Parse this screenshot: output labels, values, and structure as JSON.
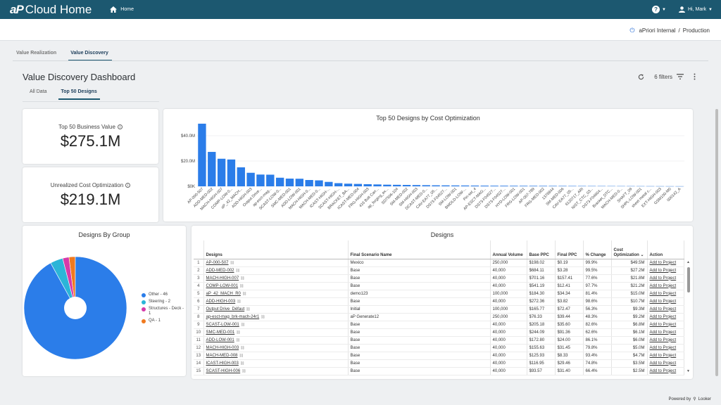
{
  "topbar": {
    "logo_ap": "aP",
    "logo_text": "Cloud Home",
    "home_label": "Home",
    "help_icon": "?",
    "user_label": "Hi, Mark"
  },
  "subheader": {
    "org": "aPriori Internal",
    "separator": "/",
    "env": "Production"
  },
  "nav": {
    "tabs": [
      "Value Realization",
      "Value Discovery"
    ],
    "active": "Value Discovery"
  },
  "dashboard": {
    "title": "Value Discovery Dashboard",
    "subtabs": [
      "All Data",
      "Top 50 Designs"
    ],
    "filters_label": "6 filters"
  },
  "kpis": [
    {
      "label": "Top 50 Business Value",
      "value": "$275.1M"
    },
    {
      "label": "Unrealized Cost Optimization",
      "value": "$219.1M"
    }
  ],
  "colors": {
    "header": "#1c5870",
    "bar": "#2b7de9",
    "other": "#2b7de9",
    "steering": "#2bb5d8",
    "structures": "#d63aa9",
    "qa": "#f07a1f"
  },
  "bar_chart_title": "Top 50 Designs by Cost Optimization",
  "pie_chart_title": "Designs By Group",
  "table_title": "Designs",
  "chart_data": [
    {
      "type": "bar",
      "title": "Top 50 Designs by Cost Optimization",
      "ylim": [
        0,
        50
      ],
      "yticks": [
        "$0K",
        "$20.0M",
        "$40.0M"
      ],
      "ytick_values": [
        0,
        20,
        40
      ],
      "categories": [
        "AP-000-507",
        "ADD-MED-002",
        "MACH-HIGH-007",
        "COMP-LOW-0...",
        "aP_42_MACH...",
        "ADD-HIGH-003",
        "Output Drive...",
        "ap-esct-mag...",
        "SCAST-LOW-0...",
        "SMC-MED-001",
        "ADD-LOW-001",
        "MACH-HIGH-0...",
        "MACH-MED-0...",
        "ICAST-HIGH-...",
        "SCAST-HIGH-...",
        "BRACKET_BA...",
        "ICAST-MED-004",
        "FRG-HIGH-003",
        "416 Bolt Carr...",
        "ap_forging_ex...",
        "SD7506-104",
        "SM-MED-002",
        "SM-HIGH-003",
        "DCAST-MED-0...",
        "CAV-EA77_05...",
        "DS73-F04527...",
        "SM-LOW-001",
        "BMOLD-LOW-...",
        "Pin-set_4",
        "AP-ESCT-MAG...",
        "DS73-F04527...",
        "DS73-F04527...",
        "HYD-LOW-001",
        "FRG-LOW-001",
        "AP-007-789",
        "FRG-MED-002",
        "1376844",
        "SM-MED-006",
        "CAV-EA77_05...",
        "6120717_ARI",
        "NIST_CTC_03...",
        "DS73-F04604...",
        "Bracket_DTC...",
        "MACH-MED-0...",
        "SHAFT_09",
        "SHPL-LOW-001",
        "sheet metal c...",
        "EXT-HIGH-003",
        "GSM100-M0",
        "000142_A"
      ],
      "values": [
        49.5,
        27.2,
        21.8,
        21.2,
        15.0,
        10.7,
        9.3,
        9.2,
        6.8,
        6.1,
        6.0,
        5.0,
        4.7,
        3.5,
        2.5,
        2.1,
        1.9,
        1.7,
        1.5,
        1.3,
        1.2,
        1.1,
        1.0,
        0.9,
        0.8,
        0.75,
        0.7,
        0.65,
        0.6,
        0.55,
        0.5,
        0.48,
        0.45,
        0.42,
        0.4,
        0.38,
        0.35,
        0.33,
        0.3,
        0.28,
        0.26,
        0.24,
        0.22,
        0.2,
        0.18,
        0.16,
        0.14,
        0.12,
        0.1,
        0.08
      ],
      "color": "#2b7de9"
    },
    {
      "type": "pie",
      "title": "Designs By Group",
      "categories": [
        "Other - 46",
        "Steering - 2",
        "Structures - Deck - 1",
        "QA - 1"
      ],
      "values": [
        46,
        2,
        1,
        1
      ],
      "colors": [
        "#2b7de9",
        "#2bb5d8",
        "#d63aa9",
        "#f07a1f"
      ],
      "legend": "right"
    }
  ],
  "table": {
    "headers": [
      "",
      "Designs",
      "Final Scenario Name",
      "Annual Volume",
      "Base PPC",
      "Final PPC",
      "% Change",
      "Cost Optimization",
      "Action"
    ],
    "rows": [
      [
        "1",
        "AP-000-507",
        "Mexico",
        "250,000",
        "$198.02",
        "$0.19",
        "99.9%",
        "$49.5M",
        "Add to Project"
      ],
      [
        "2",
        "ADD-MED-002",
        "Base",
        "40,000",
        "$684.11",
        "$3.28",
        "99.5%",
        "$27.2M",
        "Add to Project"
      ],
      [
        "3",
        "MACH-HIGH-007",
        "Base",
        "40,000",
        "$701.16",
        "$157.41",
        "77.6%",
        "$21.8M",
        "Add to Project"
      ],
      [
        "4",
        "COMP-LOW-001",
        "Base",
        "40,000",
        "$541.19",
        "$12.41",
        "97.7%",
        "$21.2M",
        "Add to Project"
      ],
      [
        "5",
        "aP_42_MACH_R0",
        "demo123",
        "100,000",
        "$184.30",
        "$34.34",
        "81.4%",
        "$15.0M",
        "Add to Project"
      ],
      [
        "6",
        "ADD-HIGH-003",
        "Base",
        "40,000",
        "$272.36",
        "$3.82",
        "98.6%",
        "$10.7M",
        "Add to Project"
      ],
      [
        "7",
        "Output Drive_Défaut",
        "Initial",
        "100,000",
        "$165.77",
        "$72.47",
        "56.3%",
        "$9.3M",
        "Add to Project"
      ],
      [
        "8",
        "ap-esct-mag_brk-mach-24r1",
        "aP Generate12",
        "250,000",
        "$76.33",
        "$39.44",
        "48.3%",
        "$9.2M",
        "Add to Project"
      ],
      [
        "9",
        "SCAST-LOW-001",
        "Base",
        "40,000",
        "$205.18",
        "$35.60",
        "82.6%",
        "$6.8M",
        "Add to Project"
      ],
      [
        "10",
        "SMC-MED-001",
        "Base",
        "40,000",
        "$244.09",
        "$91.36",
        "62.6%",
        "$6.1M",
        "Add to Project"
      ],
      [
        "11",
        "ADD-LOW-001",
        "Base",
        "40,000",
        "$172.80",
        "$24.00",
        "86.1%",
        "$6.0M",
        "Add to Project"
      ],
      [
        "12",
        "MACH-HIGH-003",
        "Base",
        "40,000",
        "$155.63",
        "$31.45",
        "79.8%",
        "$5.0M",
        "Add to Project"
      ],
      [
        "13",
        "MACH-MED-008",
        "Base",
        "40,000",
        "$125.93",
        "$8.33",
        "93.4%",
        "$4.7M",
        "Add to Project"
      ],
      [
        "14",
        "ICAST-HIGH-003",
        "Base",
        "40,000",
        "$116.95",
        "$29.46",
        "74.8%",
        "$3.5M",
        "Add to Project"
      ],
      [
        "15",
        "SCAST-HIGH-006",
        "Base",
        "40,000",
        "$93.57",
        "$31.40",
        "66.4%",
        "$2.5M",
        "Add to Project"
      ]
    ]
  },
  "footer": {
    "powered": "Powered by",
    "brand": "Looker"
  }
}
